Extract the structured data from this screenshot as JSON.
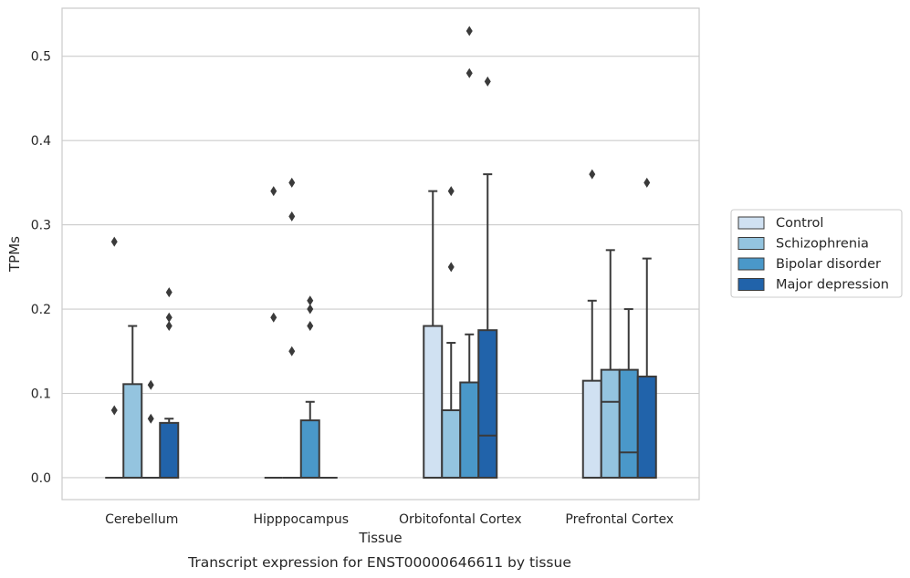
{
  "chart_data": {
    "type": "box",
    "caption": "Transcript expression for ENST00000646611 by tissue",
    "xlabel": "Tissue",
    "ylabel": "TPMs",
    "ylim": [
      -0.026,
      0.557
    ],
    "yticks": [
      0.0,
      0.1,
      0.2,
      0.3,
      0.4,
      0.5
    ],
    "ytick_labels": [
      "0.0",
      "0.1",
      "0.2",
      "0.3",
      "0.4",
      "0.5"
    ],
    "grid": "horizontal",
    "legend_position": "right",
    "categories": [
      "Cerebellum",
      "Hipppocampus",
      "Orbitofontal Cortex",
      "Prefrontal Cortex"
    ],
    "series": [
      {
        "name": "Control",
        "color": "#d0e1f2",
        "boxes": [
          {
            "q1": 0,
            "median": 0,
            "q3": 0,
            "whisker_low": 0,
            "whisker_high": 0,
            "outliers": [
              0.28,
              0.08
            ]
          },
          {
            "q1": 0,
            "median": 0,
            "q3": 0,
            "whisker_low": 0,
            "whisker_high": 0,
            "outliers": [
              0.34,
              0.19
            ]
          },
          {
            "q1": 0,
            "median": 0,
            "q3": 0.18,
            "whisker_low": 0,
            "whisker_high": 0.34,
            "outliers": []
          },
          {
            "q1": 0,
            "median": 0,
            "q3": 0.115,
            "whisker_low": 0,
            "whisker_high": 0.21,
            "outliers": [
              0.36
            ]
          }
        ]
      },
      {
        "name": "Schizophrenia",
        "color": "#94c4df",
        "boxes": [
          {
            "q1": 0,
            "median": 0,
            "q3": 0.111,
            "whisker_low": 0,
            "whisker_high": 0.18,
            "outliers": []
          },
          {
            "q1": 0,
            "median": 0,
            "q3": 0,
            "whisker_low": 0,
            "whisker_high": 0,
            "outliers": [
              0.35,
              0.31,
              0.15
            ]
          },
          {
            "q1": 0,
            "median": 0,
            "q3": 0.08,
            "whisker_low": 0,
            "whisker_high": 0.16,
            "outliers": [
              0.34,
              0.25
            ]
          },
          {
            "q1": 0,
            "median": 0.09,
            "q3": 0.128,
            "whisker_low": 0,
            "whisker_high": 0.27,
            "outliers": []
          }
        ]
      },
      {
        "name": "Bipolar disorder",
        "color": "#4a98c9",
        "boxes": [
          {
            "q1": 0,
            "median": 0,
            "q3": 0,
            "whisker_low": 0,
            "whisker_high": 0,
            "outliers": [
              0.11,
              0.07
            ]
          },
          {
            "q1": 0,
            "median": 0,
            "q3": 0.068,
            "whisker_low": 0,
            "whisker_high": 0.09,
            "outliers": [
              0.21,
              0.2,
              0.18
            ]
          },
          {
            "q1": 0,
            "median": 0,
            "q3": 0.113,
            "whisker_low": 0,
            "whisker_high": 0.17,
            "outliers": [
              0.53,
              0.48
            ]
          },
          {
            "q1": 0,
            "median": 0.03,
            "q3": 0.128,
            "whisker_low": 0,
            "whisker_high": 0.2,
            "outliers": []
          }
        ]
      },
      {
        "name": "Major depression",
        "color": "#2163aa",
        "boxes": [
          {
            "q1": 0,
            "median": 0,
            "q3": 0.065,
            "whisker_low": 0,
            "whisker_high": 0.07,
            "outliers": [
              0.22,
              0.19,
              0.18
            ]
          },
          {
            "q1": 0,
            "median": 0,
            "q3": 0,
            "whisker_low": 0,
            "whisker_high": 0,
            "outliers": []
          },
          {
            "q1": 0,
            "median": 0.05,
            "q3": 0.175,
            "whisker_low": 0,
            "whisker_high": 0.36,
            "outliers": [
              0.47
            ]
          },
          {
            "q1": 0,
            "median": 0,
            "q3": 0.12,
            "whisker_low": 0,
            "whisker_high": 0.26,
            "outliers": [
              0.35
            ]
          }
        ]
      }
    ]
  }
}
